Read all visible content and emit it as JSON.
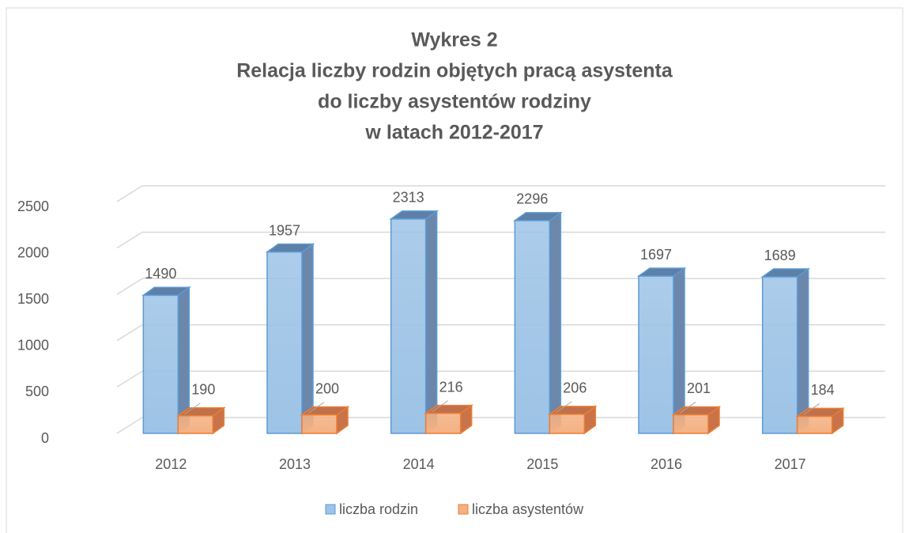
{
  "chart_data": {
    "type": "bar3d",
    "title": [
      "Wykres 2",
      "Relacja liczby rodzin objętych pracą asystenta",
      "do liczby asystentów rodziny",
      "w latach 2012-2017"
    ],
    "categories": [
      "2012",
      "2013",
      "2014",
      "2015",
      "2016",
      "2017"
    ],
    "series": [
      {
        "name": "liczba rodzin",
        "color": "#9dc3e6",
        "values": [
          1490,
          1957,
          2313,
          2296,
          1697,
          1689
        ]
      },
      {
        "name": "liczba asystentów",
        "color": "#f4b183",
        "values": [
          190,
          200,
          216,
          206,
          201,
          184
        ]
      }
    ],
    "ylim": [
      0,
      2500
    ],
    "yticks": [
      0,
      500,
      1000,
      1500,
      2000,
      2500
    ],
    "grid": true,
    "legend": "bottom"
  }
}
